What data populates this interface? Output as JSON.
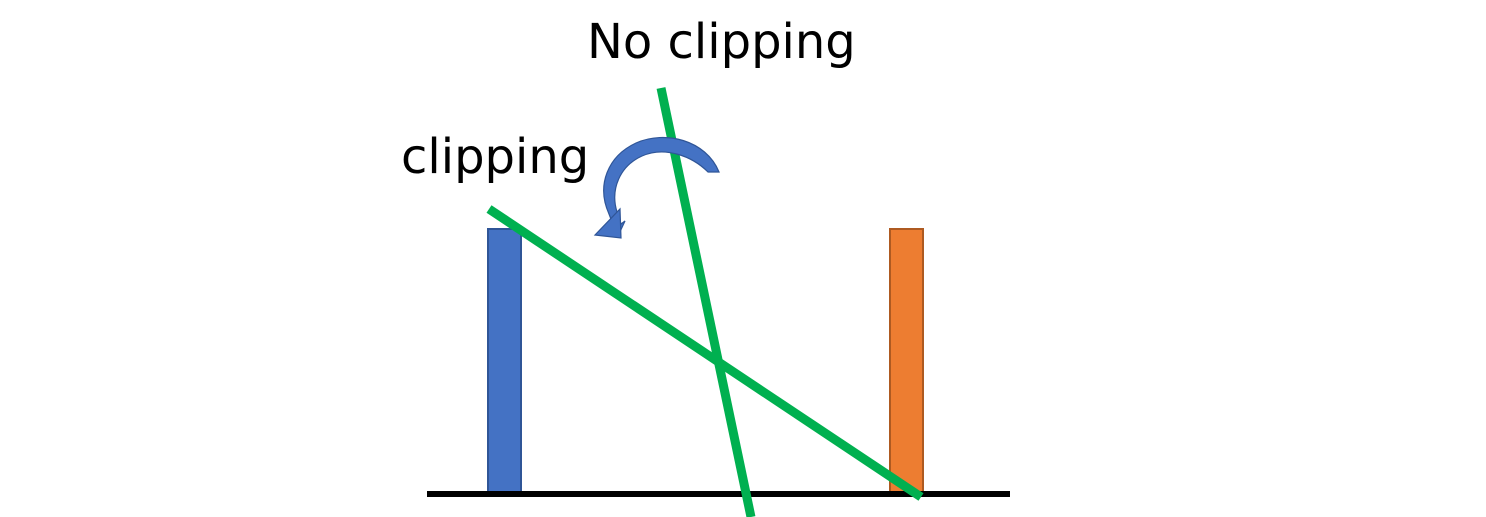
{
  "labels": {
    "no_clipping": "No clipping",
    "clipping": "clipping"
  },
  "colors": {
    "background": "#ffffff",
    "ground_line": "#000000",
    "left_bar_fill": "#4472c4",
    "left_bar_stroke": "#2f5597",
    "right_bar_fill": "#ed7d31",
    "right_bar_stroke": "#ae5a21",
    "cut_lines": "#00b050",
    "rotation_arrow": "#4472c4",
    "text": "#000000"
  },
  "icons": {
    "rotation_arrow": "curved-rotate-arrow-icon"
  }
}
